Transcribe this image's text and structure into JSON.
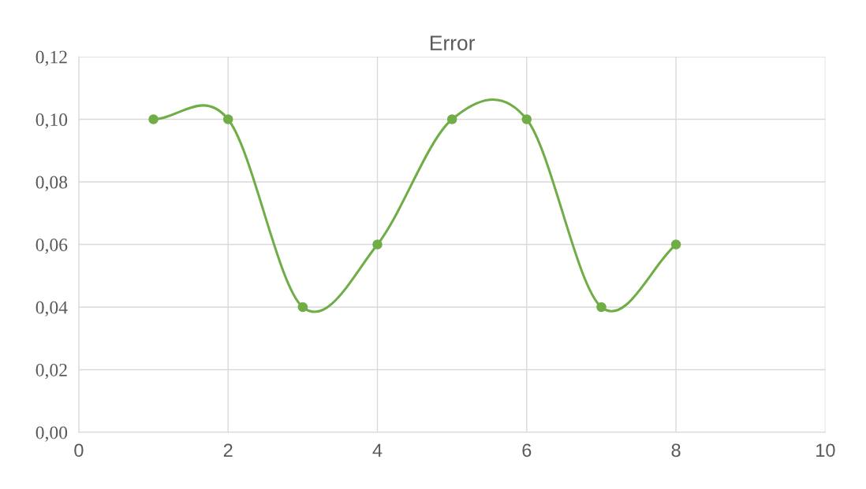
{
  "chart_data": {
    "type": "line",
    "title": "Error",
    "x": [
      1,
      2,
      3,
      4,
      5,
      6,
      7,
      8
    ],
    "series": [
      {
        "color": "#70ad47",
        "values": [
          0.1,
          0.1,
          0.04,
          0.06,
          0.1,
          0.1,
          0.04,
          0.06
        ]
      }
    ],
    "xlim": [
      0,
      10
    ],
    "xticks": [
      0,
      2,
      4,
      6,
      8,
      10
    ],
    "ylim": [
      0,
      0.12
    ],
    "yticks": [
      {
        "value": 0,
        "label": "0,00"
      },
      {
        "value": 0.02,
        "label": "0,02"
      },
      {
        "value": 0.04,
        "label": "0,04"
      },
      {
        "value": 0.06,
        "label": "0,06"
      },
      {
        "value": 0.08,
        "label": "0,08"
      },
      {
        "value": 0.1,
        "label": "0,10"
      },
      {
        "value": 0.12,
        "label": "0,12"
      }
    ],
    "grid": true,
    "marker": "circle",
    "line_style": "solid",
    "legend": false
  }
}
